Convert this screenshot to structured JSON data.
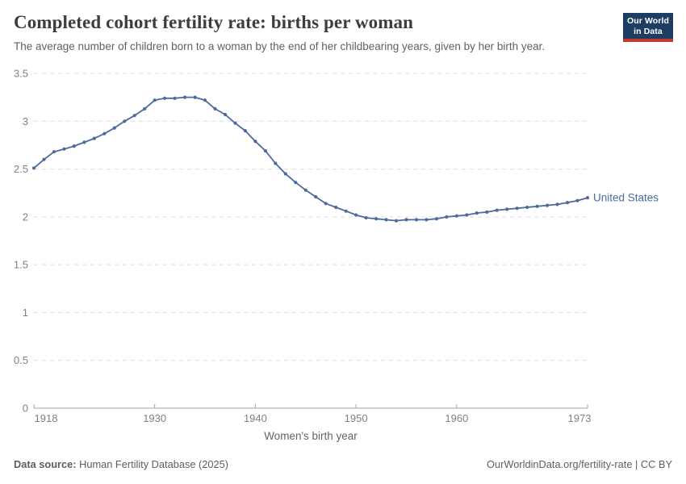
{
  "header": {
    "title": "Completed cohort fertility rate: births per woman",
    "subtitle": "The average number of children born to a woman by the end of her childbearing years, given by her birth year.",
    "logo": {
      "line1": "Our World",
      "line2": "in Data"
    }
  },
  "chart_data": {
    "type": "line",
    "title": "Completed cohort fertility rate: births per woman",
    "xlabel": "Women's birth year",
    "ylabel": "",
    "xlim": [
      1918,
      1973
    ],
    "ylim": [
      0,
      3.5
    ],
    "xticks": [
      1918,
      1930,
      1940,
      1950,
      1960,
      1973
    ],
    "yticks": [
      0,
      0.5,
      1,
      1.5,
      2,
      2.5,
      3,
      3.5
    ],
    "yticklabels": [
      "0",
      "0.5",
      "1",
      "1.5",
      "2",
      "2.5",
      "3",
      "3.5"
    ],
    "grid": "horizontal-dashed",
    "legend_position": "end-of-line-label",
    "series": [
      {
        "name": "United States",
        "color": "#4C6A9C",
        "x": [
          1918,
          1919,
          1920,
          1921,
          1922,
          1923,
          1924,
          1925,
          1926,
          1927,
          1928,
          1929,
          1930,
          1931,
          1932,
          1933,
          1934,
          1935,
          1936,
          1937,
          1938,
          1939,
          1940,
          1941,
          1942,
          1943,
          1944,
          1945,
          1946,
          1947,
          1948,
          1949,
          1950,
          1951,
          1952,
          1953,
          1954,
          1955,
          1956,
          1957,
          1958,
          1959,
          1960,
          1961,
          1962,
          1963,
          1964,
          1965,
          1966,
          1967,
          1968,
          1969,
          1970,
          1971,
          1972,
          1973
        ],
        "values": [
          2.51,
          2.6,
          2.68,
          2.71,
          2.74,
          2.78,
          2.82,
          2.87,
          2.93,
          3.0,
          3.06,
          3.13,
          3.22,
          3.24,
          3.24,
          3.25,
          3.25,
          3.22,
          3.13,
          3.07,
          2.98,
          2.9,
          2.79,
          2.69,
          2.56,
          2.45,
          2.36,
          2.28,
          2.21,
          2.14,
          2.1,
          2.06,
          2.02,
          1.99,
          1.98,
          1.97,
          1.96,
          1.97,
          1.97,
          1.97,
          1.98,
          2.0,
          2.01,
          2.02,
          2.04,
          2.05,
          2.07,
          2.08,
          2.09,
          2.1,
          2.11,
          2.12,
          2.13,
          2.15,
          2.17,
          2.2
        ]
      }
    ]
  },
  "footer": {
    "datasource_label": "Data source:",
    "datasource_value": " Human Fertility Database (2025)",
    "link": "OurWorldinData.org/fertility-rate | CC BY"
  },
  "colors": {
    "line": "#4C6A9C",
    "grid": "#dcdcdc",
    "axis_line": "#a3a3a3",
    "axis_text": "#808080",
    "axis_title": "#636363",
    "title_text": "#3d3d3d",
    "subtitle_text": "#616161",
    "footer_text": "#5e5e5e",
    "logo_bg": "#1d3d63",
    "logo_accent": "#c13a2d"
  }
}
